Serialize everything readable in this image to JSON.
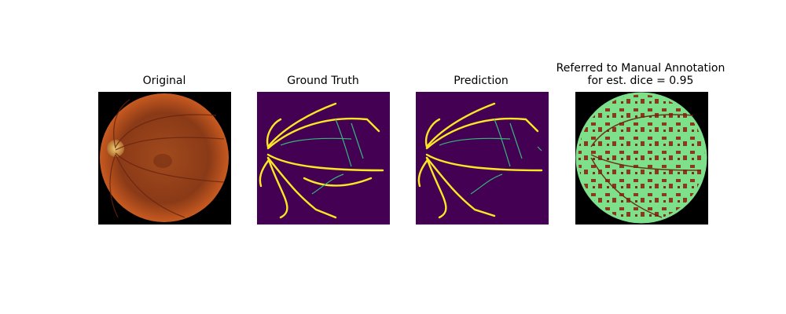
{
  "panels": [
    {
      "title": "Original"
    },
    {
      "title": "Ground Truth"
    },
    {
      "title": "Prediction"
    },
    {
      "title_line1": "Referred to Manual Annotation",
      "title_line2": "for est. dice = 0.95"
    }
  ]
}
